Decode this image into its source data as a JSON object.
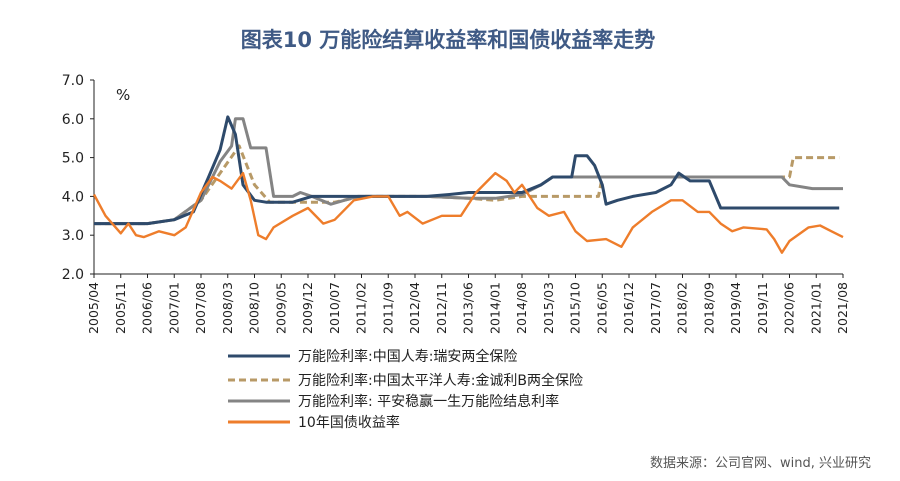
{
  "title": "图表10   万能险结算收益率和国债收益率走势",
  "source": "数据来源：公司官网、wind, 兴业研究",
  "chart_data": {
    "type": "line",
    "y_unit": "%",
    "ylim": [
      2.0,
      7.0
    ],
    "yticks": [
      "2.0",
      "3.0",
      "4.0",
      "5.0",
      "6.0",
      "7.0"
    ],
    "x_start": "2005/04",
    "x_end": "2021/08",
    "xticks": [
      "2005/04",
      "2005/11",
      "2006/06",
      "2007/01",
      "2007/08",
      "2008/03",
      "2008/10",
      "2009/05",
      "2009/12",
      "2010/07",
      "2011/02",
      "2011/09",
      "2012/04",
      "2012/11",
      "2013/06",
      "2014/01",
      "2014/08",
      "2015/03",
      "2015/10",
      "2016/05",
      "2016/12",
      "2017/07",
      "2018/02",
      "2018/09",
      "2019/04",
      "2019/11",
      "2020/06",
      "2021/01",
      "2021/08"
    ],
    "legend_position": "bottom",
    "series": [
      {
        "name": "万能险利率:中国人寿:瑞安两全保险",
        "color": "#2e4a6b",
        "style": "solid",
        "points": [
          [
            "2005/04",
            3.3
          ],
          [
            "2006/06",
            3.3
          ],
          [
            "2007/01",
            3.4
          ],
          [
            "2007/06",
            3.6
          ],
          [
            "2007/10",
            4.5
          ],
          [
            "2008/01",
            5.2
          ],
          [
            "2008/03",
            6.05
          ],
          [
            "2008/05",
            5.6
          ],
          [
            "2008/07",
            4.3
          ],
          [
            "2008/10",
            3.9
          ],
          [
            "2009/01",
            3.85
          ],
          [
            "2009/08",
            3.85
          ],
          [
            "2010/01",
            4.0
          ],
          [
            "2012/07",
            4.0
          ],
          [
            "2013/01",
            4.05
          ],
          [
            "2013/06",
            4.1
          ],
          [
            "2014/01",
            4.1
          ],
          [
            "2014/08",
            4.1
          ],
          [
            "2015/01",
            4.3
          ],
          [
            "2015/04",
            4.5
          ],
          [
            "2015/09",
            4.5
          ],
          [
            "2015/10",
            5.05
          ],
          [
            "2016/01",
            5.05
          ],
          [
            "2016/03",
            4.8
          ],
          [
            "2016/05",
            4.3
          ],
          [
            "2016/06",
            3.8
          ],
          [
            "2016/09",
            3.9
          ],
          [
            "2017/01",
            4.0
          ],
          [
            "2017/07",
            4.1
          ],
          [
            "2017/11",
            4.3
          ],
          [
            "2018/01",
            4.6
          ],
          [
            "2018/04",
            4.4
          ],
          [
            "2018/09",
            4.4
          ],
          [
            "2018/12",
            3.7
          ],
          [
            "2021/07",
            3.7
          ]
        ]
      },
      {
        "name": "万能险利率:中国太平洋人寿:金诚利B两全保险",
        "color": "#b89a67",
        "style": "dashed",
        "points": [
          [
            "2005/04",
            3.3
          ],
          [
            "2006/06",
            3.3
          ],
          [
            "2007/01",
            3.4
          ],
          [
            "2007/08",
            3.9
          ],
          [
            "2008/01",
            4.6
          ],
          [
            "2008/06",
            5.3
          ],
          [
            "2008/10",
            4.3
          ],
          [
            "2009/02",
            3.85
          ],
          [
            "2009/08",
            3.85
          ],
          [
            "2010/01",
            3.85
          ],
          [
            "2010/07",
            3.85
          ],
          [
            "2011/02",
            4.0
          ],
          [
            "2012/07",
            4.0
          ],
          [
            "2013/06",
            3.95
          ],
          [
            "2014/01",
            3.9
          ],
          [
            "2014/08",
            4.0
          ],
          [
            "2015/06",
            4.0
          ],
          [
            "2016/04",
            4.0
          ],
          [
            "2016/05",
            4.5
          ],
          [
            "2020/06",
            4.5
          ],
          [
            "2020/07",
            5.0
          ],
          [
            "2021/07",
            5.0
          ]
        ]
      },
      {
        "name": "万能险利率: 平安稳赢一生万能险结息利率",
        "color": "#848484",
        "style": "solid",
        "points": [
          [
            "2005/04",
            3.3
          ],
          [
            "2006/06",
            3.3
          ],
          [
            "2007/01",
            3.4
          ],
          [
            "2007/08",
            3.9
          ],
          [
            "2008/01",
            4.9
          ],
          [
            "2008/04",
            5.3
          ],
          [
            "2008/05",
            6.0
          ],
          [
            "2008/07",
            6.0
          ],
          [
            "2008/09",
            5.25
          ],
          [
            "2009/01",
            5.25
          ],
          [
            "2009/03",
            4.0
          ],
          [
            "2009/08",
            4.0
          ],
          [
            "2009/10",
            4.1
          ],
          [
            "2010/01",
            4.0
          ],
          [
            "2010/06",
            3.8
          ],
          [
            "2011/01",
            4.0
          ],
          [
            "2012/07",
            4.0
          ],
          [
            "2013/06",
            3.95
          ],
          [
            "2014/01",
            3.95
          ],
          [
            "2014/08",
            4.05
          ],
          [
            "2015/01",
            4.3
          ],
          [
            "2015/04",
            4.5
          ],
          [
            "2020/04",
            4.5
          ],
          [
            "2020/06",
            4.3
          ],
          [
            "2020/12",
            4.2
          ],
          [
            "2021/08",
            4.2
          ]
        ]
      },
      {
        "name": "10年国债收益率",
        "color": "#ee7d2b",
        "style": "solid",
        "points": [
          [
            "2005/04",
            4.05
          ],
          [
            "2005/07",
            3.5
          ],
          [
            "2005/11",
            3.05
          ],
          [
            "2006/01",
            3.3
          ],
          [
            "2006/03",
            3.0
          ],
          [
            "2006/05",
            2.95
          ],
          [
            "2006/09",
            3.1
          ],
          [
            "2007/01",
            3.0
          ],
          [
            "2007/04",
            3.2
          ],
          [
            "2007/08",
            4.1
          ],
          [
            "2007/11",
            4.5
          ],
          [
            "2008/01",
            4.4
          ],
          [
            "2008/04",
            4.2
          ],
          [
            "2008/07",
            4.6
          ],
          [
            "2008/09",
            3.9
          ],
          [
            "2008/11",
            3.0
          ],
          [
            "2009/01",
            2.9
          ],
          [
            "2009/03",
            3.2
          ],
          [
            "2009/08",
            3.5
          ],
          [
            "2009/12",
            3.7
          ],
          [
            "2010/04",
            3.3
          ],
          [
            "2010/07",
            3.4
          ],
          [
            "2010/12",
            3.9
          ],
          [
            "2011/05",
            4.0
          ],
          [
            "2011/09",
            4.0
          ],
          [
            "2011/12",
            3.5
          ],
          [
            "2012/02",
            3.6
          ],
          [
            "2012/06",
            3.3
          ],
          [
            "2012/11",
            3.5
          ],
          [
            "2013/04",
            3.5
          ],
          [
            "2013/08",
            4.1
          ],
          [
            "2013/11",
            4.4
          ],
          [
            "2014/01",
            4.6
          ],
          [
            "2014/04",
            4.4
          ],
          [
            "2014/06",
            4.1
          ],
          [
            "2014/08",
            4.3
          ],
          [
            "2014/12",
            3.7
          ],
          [
            "2015/03",
            3.5
          ],
          [
            "2015/07",
            3.6
          ],
          [
            "2015/10",
            3.1
          ],
          [
            "2016/01",
            2.85
          ],
          [
            "2016/06",
            2.9
          ],
          [
            "2016/10",
            2.7
          ],
          [
            "2017/01",
            3.2
          ],
          [
            "2017/06",
            3.6
          ],
          [
            "2017/11",
            3.9
          ],
          [
            "2018/02",
            3.9
          ],
          [
            "2018/06",
            3.6
          ],
          [
            "2018/09",
            3.6
          ],
          [
            "2018/12",
            3.3
          ],
          [
            "2019/03",
            3.1
          ],
          [
            "2019/06",
            3.2
          ],
          [
            "2019/12",
            3.15
          ],
          [
            "2020/02",
            2.9
          ],
          [
            "2020/04",
            2.55
          ],
          [
            "2020/06",
            2.85
          ],
          [
            "2020/11",
            3.2
          ],
          [
            "2021/02",
            3.25
          ],
          [
            "2021/05",
            3.1
          ],
          [
            "2021/08",
            2.95
          ]
        ]
      }
    ]
  }
}
